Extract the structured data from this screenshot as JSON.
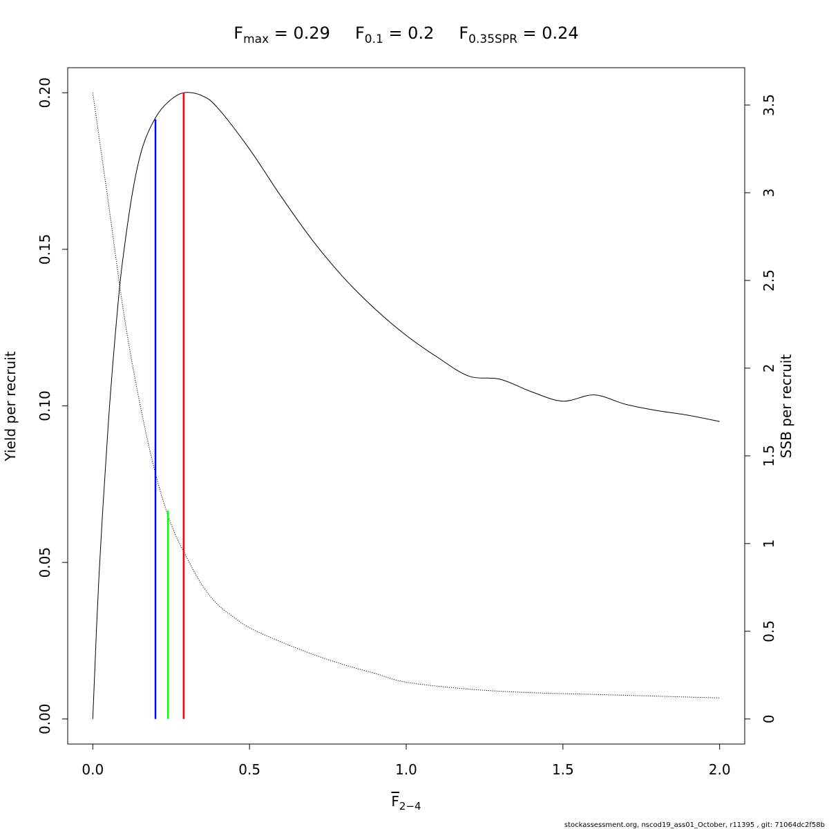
{
  "chart_data": {
    "type": "line",
    "title_parts": [
      {
        "base": "F",
        "sub": "max",
        "eq": " = ",
        "value": "0.29"
      },
      {
        "base": "F",
        "sub": "0.1",
        "eq": " = ",
        "value": "0.2"
      },
      {
        "base": "F",
        "sub": "0.35SPR",
        "eq": " = ",
        "value": "0.24"
      }
    ],
    "xlabel": {
      "base": "F",
      "sub": "2−4"
    },
    "ylabel_left": "Yield per recruit",
    "ylabel_right": "SSB per recruit",
    "footer": "stockassessment.org, nscod19_ass01_October, r11395 , git: 71064dc2f58b",
    "xlim": [
      -0.08,
      2.08
    ],
    "ylim_left": [
      -0.008,
      0.208
    ],
    "ylim_right": [
      -0.1428,
      3.7128
    ],
    "x_ticks": [
      {
        "value": 0.0,
        "label": "0.0"
      },
      {
        "value": 0.5,
        "label": "0.5"
      },
      {
        "value": 1.0,
        "label": "1.0"
      },
      {
        "value": 1.5,
        "label": "1.5"
      },
      {
        "value": 2.0,
        "label": "2.0"
      }
    ],
    "y_left_ticks": [
      {
        "value": 0.0,
        "label": "0.00"
      },
      {
        "value": 0.05,
        "label": "0.05"
      },
      {
        "value": 0.1,
        "label": "0.10"
      },
      {
        "value": 0.15,
        "label": "0.15"
      },
      {
        "value": 0.2,
        "label": "0.20"
      }
    ],
    "y_right_ticks": [
      {
        "value": 0,
        "label": "0"
      },
      {
        "value": 0.5,
        "label": "0.5"
      },
      {
        "value": 1,
        "label": "1"
      },
      {
        "value": 1.5,
        "label": "1.5"
      },
      {
        "value": 2,
        "label": "2"
      },
      {
        "value": 2.5,
        "label": "2.5"
      },
      {
        "value": 3,
        "label": "3"
      },
      {
        "value": 3.5,
        "label": "3.5"
      }
    ],
    "series": [
      {
        "axis": "left",
        "style": "solid",
        "color": "#000000",
        "x": [
          0.0,
          0.02,
          0.05,
          0.08,
          0.1,
          0.13,
          0.16,
          0.2,
          0.24,
          0.29,
          0.35,
          0.4,
          0.5,
          0.6,
          0.7,
          0.8,
          0.9,
          1.0,
          1.1,
          1.2,
          1.3,
          1.4,
          1.5,
          1.6,
          1.7,
          1.8,
          1.9,
          2.0
        ],
        "y": [
          0.0,
          0.046,
          0.095,
          0.132,
          0.15,
          0.17,
          0.183,
          0.192,
          0.197,
          0.2,
          0.199,
          0.195,
          0.182,
          0.167,
          0.153,
          0.141,
          0.131,
          0.1225,
          0.1155,
          0.1095,
          0.1085,
          0.1045,
          0.1015,
          0.1035,
          0.1005,
          0.0985,
          0.097,
          0.095
        ]
      },
      {
        "axis": "right",
        "style": "dotted",
        "color": "#000000",
        "x": [
          0.0,
          0.05,
          0.1,
          0.15,
          0.2,
          0.25,
          0.3,
          0.35,
          0.4,
          0.45,
          0.5,
          0.6,
          0.7,
          0.8,
          0.9,
          1.0,
          1.2,
          1.4,
          1.6,
          1.8,
          2.0
        ],
        "y": [
          3.57,
          2.94,
          2.3,
          1.8,
          1.4,
          1.11,
          0.92,
          0.76,
          0.65,
          0.58,
          0.52,
          0.44,
          0.37,
          0.31,
          0.26,
          0.21,
          0.17,
          0.15,
          0.14,
          0.13,
          0.12
        ]
      }
    ],
    "reference_lines": [
      {
        "name": "Fmax",
        "x": 0.29,
        "y_top": 0.2,
        "color": "#ff0000"
      },
      {
        "name": "F0.1",
        "x": 0.2,
        "y_top": 0.1915,
        "color": "#0000ff"
      },
      {
        "name": "F0.35SPR",
        "x": 0.24,
        "y_top": 0.0665,
        "color": "#00ff00"
      }
    ]
  }
}
